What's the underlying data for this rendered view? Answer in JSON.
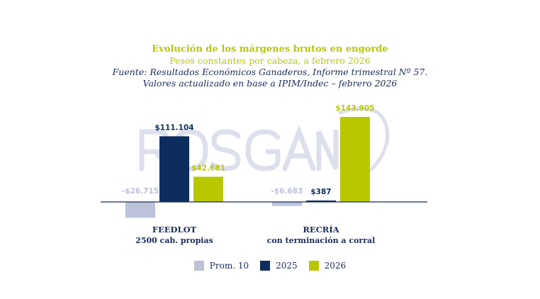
{
  "chart_data": {
    "type": "bar",
    "title": "Evolución de los márgenes brutos en engorde",
    "subtitle": "Pesos constantes por cabeza, a febrero 2026",
    "source_lines": [
      "Fuente: Resultados Económicos Ganaderos, Informe trimestral Nº 57.",
      "Valores actualizado en base a IPIM/Indec – febrero 2026"
    ],
    "categories": [
      {
        "line1": "FEEDLOT",
        "line2": "2500 cab. propias"
      },
      {
        "line1": "RECRÍA",
        "line2": "con terminación a corral"
      }
    ],
    "series": [
      {
        "name": "Prom. 10",
        "color": "#bcc2d8",
        "values": [
          -26715,
          -6683
        ],
        "labels": [
          "-$26.715",
          "-$6.683"
        ]
      },
      {
        "name": "2025",
        "color": "#0d2d5e",
        "values": [
          111104,
          387
        ],
        "labels": [
          "$111.104",
          "$387"
        ]
      },
      {
        "name": "2026",
        "color": "#b8c800",
        "values": [
          42681,
          143905
        ],
        "labels": [
          "$42.681",
          "$143.905"
        ]
      }
    ],
    "legend_position": "bottom",
    "grid": false,
    "watermark": "ROSGAN"
  }
}
